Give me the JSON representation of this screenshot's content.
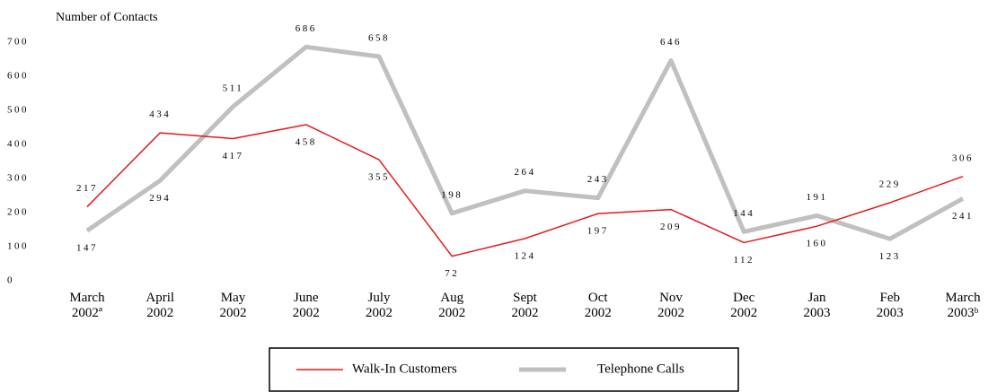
{
  "chart_data": {
    "type": "line",
    "ylabel": "Number of Contacts",
    "categories": [
      "March 2002ª",
      "April 2002",
      "May 2002",
      "June 2002",
      "July 2002",
      "Aug 2002",
      "Sept 2002",
      "Oct 2002",
      "Nov 2002",
      "Dec 2002",
      "Jan 2003",
      "Feb 2003",
      "March 2003ᵇ"
    ],
    "series": [
      {
        "name": "Walk-In Customers",
        "color": "#e41a1c",
        "values": [
          217,
          434,
          417,
          458,
          355,
          72,
          124,
          197,
          209,
          112,
          160,
          229,
          306
        ]
      },
      {
        "name": "Telephone Calls",
        "color": "#c0c0c0",
        "values": [
          147,
          294,
          511,
          686,
          658,
          198,
          264,
          243,
          646,
          144,
          191,
          123,
          241
        ]
      }
    ],
    "ylim": [
      0,
      700
    ],
    "yticks": [
      0,
      100,
      200,
      300,
      400,
      500,
      600,
      700
    ],
    "grid": false
  }
}
